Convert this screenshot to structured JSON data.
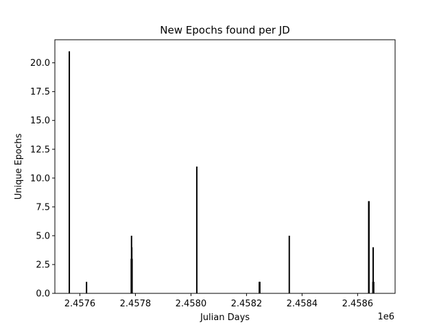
{
  "chart_data": {
    "type": "bar",
    "title": "New Epochs found per JD",
    "xlabel": "Julian Days",
    "ylabel": "Unique Epochs",
    "x_offset_label": "1e6",
    "xlim": [
      2457510,
      2458735
    ],
    "ylim": [
      0,
      22
    ],
    "grid": false,
    "bar_color": "#000000",
    "xticks": [
      2457600,
      2457800,
      2458000,
      2458200,
      2458400,
      2458600
    ],
    "xtick_labels": [
      "2.4576",
      "2.4578",
      "2.4580",
      "2.4582",
      "2.4584",
      "2.4586"
    ],
    "yticks": [
      0,
      2.5,
      5,
      7.5,
      10,
      12.5,
      15,
      17.5,
      20
    ],
    "ytick_labels": [
      "0.0",
      "2.5",
      "5.0",
      "7.5",
      "10.0",
      "12.5",
      "15.0",
      "17.5",
      "20.0"
    ],
    "points": [
      {
        "x": 2457562,
        "y": 21
      },
      {
        "x": 2457624,
        "y": 1
      },
      {
        "x": 2457785,
        "y": 3
      },
      {
        "x": 2457786,
        "y": 5
      },
      {
        "x": 2457787,
        "y": 4
      },
      {
        "x": 2457788,
        "y": 3
      },
      {
        "x": 2458021,
        "y": 11
      },
      {
        "x": 2458246,
        "y": 1
      },
      {
        "x": 2458247,
        "y": 1
      },
      {
        "x": 2458248,
        "y": 1
      },
      {
        "x": 2458354,
        "y": 5
      },
      {
        "x": 2458640,
        "y": 8
      },
      {
        "x": 2458641,
        "y": 8
      },
      {
        "x": 2458655,
        "y": 1
      },
      {
        "x": 2458656,
        "y": 4
      },
      {
        "x": 2458657,
        "y": 1
      },
      {
        "x": 2458658,
        "y": 1
      }
    ]
  }
}
